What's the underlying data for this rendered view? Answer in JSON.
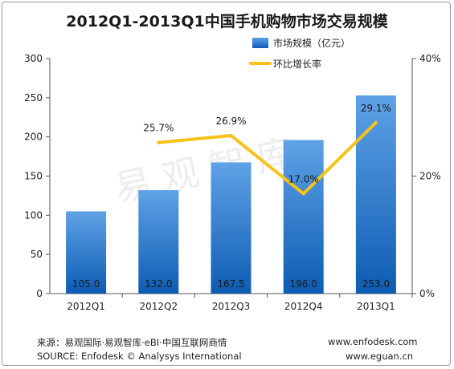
{
  "chart_data": {
    "type": "bar",
    "title": "2012Q1-2013Q1中国手机购物市场交易规模",
    "categories": [
      "2012Q1",
      "2012Q2",
      "2012Q3",
      "2012Q4",
      "2013Q1"
    ],
    "series": [
      {
        "name": "市场规模（亿元）",
        "type": "bar",
        "axis": "left",
        "values": [
          105.0,
          132.0,
          167.5,
          196.0,
          253.0
        ],
        "labels": [
          "105.0",
          "132.0",
          "167.5",
          "196.0",
          "253.0"
        ]
      },
      {
        "name": "环比增长率",
        "type": "line",
        "axis": "right",
        "values": [
          null,
          25.7,
          26.9,
          17.0,
          29.1
        ],
        "labels": [
          "",
          "25.7%",
          "26.9%",
          "17.0%",
          "29.1%"
        ]
      }
    ],
    "left_axis": {
      "range": [
        0,
        300
      ],
      "ticks": [
        "0",
        "50",
        "100",
        "150",
        "200",
        "250",
        "300"
      ]
    },
    "right_axis": {
      "range": [
        0,
        40
      ],
      "ticks": [
        "0%",
        "20%",
        "40%"
      ]
    },
    "legend_position": "top-right",
    "colors": {
      "bar_top": "#5fa2e6",
      "bar_bottom": "#0d5cb3",
      "line": "#f7c21b"
    }
  },
  "watermark": "易观智库",
  "footer": {
    "source_cn": "来源：易观国际·易观智库·eBI·中国互联网商情",
    "source_en": "SOURCE: Enfodesk © Analysys International",
    "url1": "www.enfodesk.com",
    "url2": "www.eguan.cn"
  }
}
